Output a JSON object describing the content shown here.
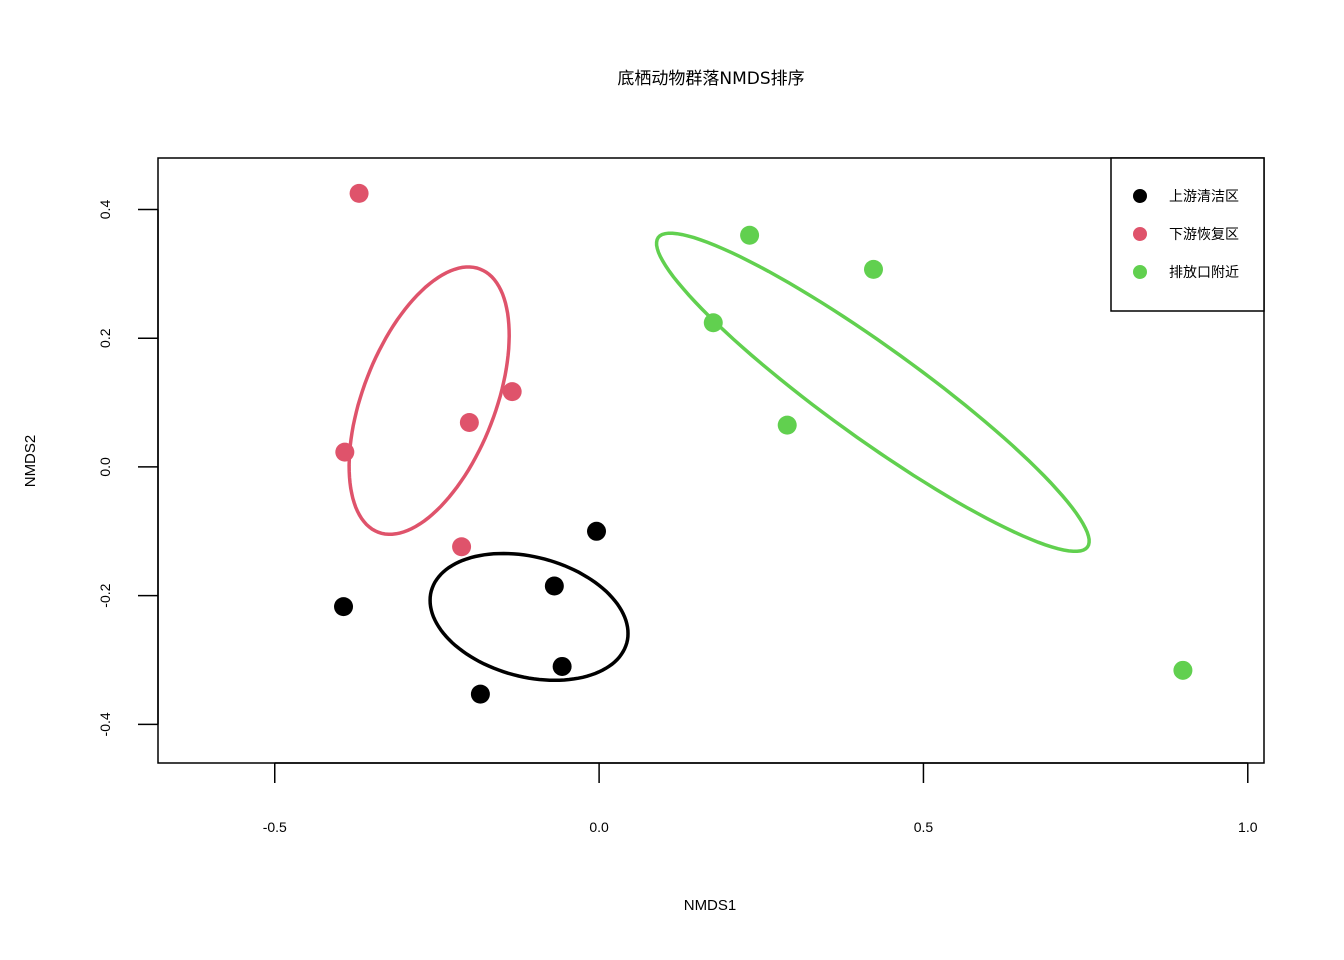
{
  "chart_data": {
    "type": "scatter",
    "title": "底栖动物群落NMDS排序",
    "xlabel": "NMDS1",
    "ylabel": "NMDS2",
    "xlim": [
      -0.68,
      1.025
    ],
    "ylim": [
      -0.46,
      0.48
    ],
    "xticks": [
      -0.5,
      0.0,
      0.5,
      1.0
    ],
    "xtick_labels": [
      "-0.5",
      "0.0",
      "0.5",
      "1.0"
    ],
    "yticks": [
      -0.4,
      -0.2,
      0.0,
      0.2,
      0.4
    ],
    "ytick_labels": [
      "-0.4",
      "-0.2",
      "0.0",
      "0.2",
      "0.4"
    ],
    "legend_position": "top-right",
    "series": [
      {
        "name": "上游清洁区",
        "color": "#000000",
        "points": [
          [
            -0.394,
            -0.217
          ],
          [
            -0.183,
            -0.353
          ],
          [
            -0.069,
            -0.185
          ],
          [
            -0.057,
            -0.31
          ],
          [
            -0.004,
            -0.1
          ]
        ],
        "ellipse": {
          "cx": -0.108,
          "cy": -0.233,
          "rx": 0.156,
          "ry": 0.093,
          "angle_deg": -15
        }
      },
      {
        "name": "下游恢复区",
        "color": "#DF536B",
        "points": [
          [
            -0.37,
            0.425
          ],
          [
            -0.392,
            0.023
          ],
          [
            -0.2,
            0.069
          ],
          [
            -0.134,
            0.117
          ],
          [
            -0.212,
            -0.124
          ]
        ],
        "ellipse": {
          "cx": -0.262,
          "cy": 0.103,
          "rx": 0.219,
          "ry": 0.102,
          "angle_deg": 69
        }
      },
      {
        "name": "排放口附近",
        "color": "#61D04F",
        "points": [
          [
            0.232,
            0.36
          ],
          [
            0.423,
            0.307
          ],
          [
            0.176,
            0.224
          ],
          [
            0.29,
            0.065
          ],
          [
            0.9,
            -0.316
          ]
        ],
        "ellipse": {
          "cx": 0.422,
          "cy": 0.116,
          "rx": 0.409,
          "ry": 0.071,
          "angle_deg": -36
        }
      }
    ]
  }
}
